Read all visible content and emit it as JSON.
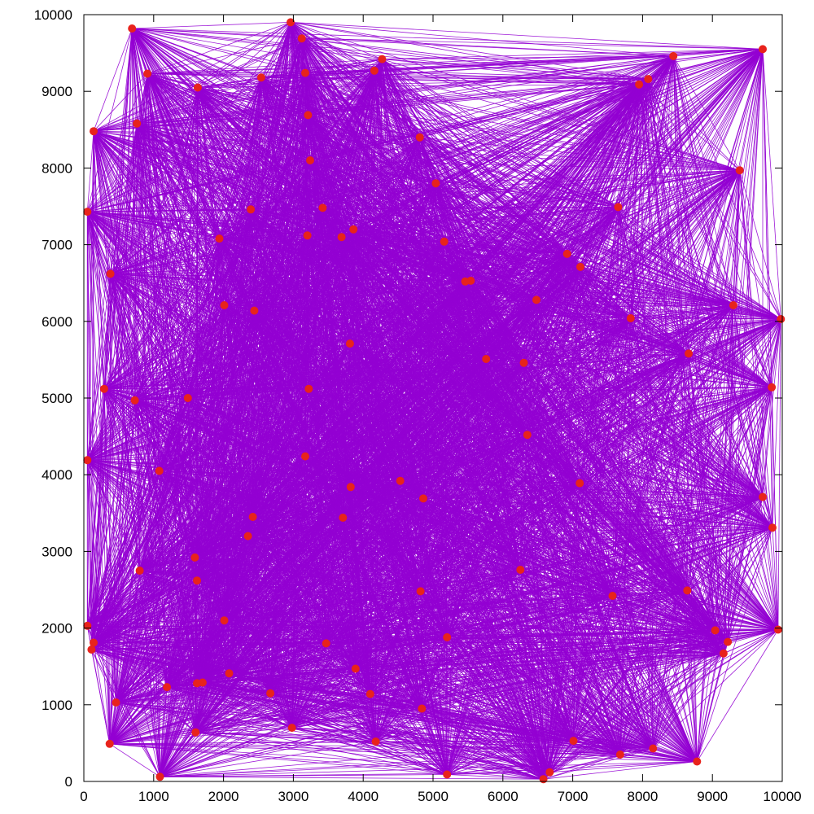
{
  "chart_data": {
    "type": "scatter",
    "title": "",
    "xlabel": "",
    "ylabel": "",
    "xlim": [
      0,
      10000
    ],
    "ylim": [
      0,
      10000
    ],
    "grid": false,
    "legend": "none",
    "x_ticks": [
      "0",
      "1000",
      "2000",
      "3000",
      "4000",
      "5000",
      "6000",
      "7000",
      "8000",
      "9000",
      "10000"
    ],
    "y_ticks": [
      "0",
      "1000",
      "2000",
      "3000",
      "4000",
      "5000",
      "6000",
      "7000",
      "8000",
      "9000",
      "10000"
    ],
    "point_color": "#e8231c",
    "edge_color": "#9400d3",
    "edges": "complete graph: every pair of points connected",
    "points": [
      {
        "x": 690,
        "y": 9820
      },
      {
        "x": 2960,
        "y": 9900
      },
      {
        "x": 3120,
        "y": 9690
      },
      {
        "x": 9720,
        "y": 9550
      },
      {
        "x": 8440,
        "y": 9460
      },
      {
        "x": 4270,
        "y": 9420
      },
      {
        "x": 4160,
        "y": 9270
      },
      {
        "x": 3170,
        "y": 9240
      },
      {
        "x": 910,
        "y": 9230
      },
      {
        "x": 2540,
        "y": 9180
      },
      {
        "x": 8080,
        "y": 9160
      },
      {
        "x": 7950,
        "y": 9090
      },
      {
        "x": 1630,
        "y": 9050
      },
      {
        "x": 3210,
        "y": 8690
      },
      {
        "x": 760,
        "y": 8580
      },
      {
        "x": 140,
        "y": 8480
      },
      {
        "x": 4810,
        "y": 8400
      },
      {
        "x": 3240,
        "y": 8100
      },
      {
        "x": 9390,
        "y": 7970
      },
      {
        "x": 5040,
        "y": 7800
      },
      {
        "x": 7650,
        "y": 7490
      },
      {
        "x": 3420,
        "y": 7480
      },
      {
        "x": 2390,
        "y": 7460
      },
      {
        "x": 50,
        "y": 7430
      },
      {
        "x": 3860,
        "y": 7200
      },
      {
        "x": 3200,
        "y": 7120
      },
      {
        "x": 3690,
        "y": 7100
      },
      {
        "x": 1940,
        "y": 7080
      },
      {
        "x": 5160,
        "y": 7040
      },
      {
        "x": 6920,
        "y": 6880
      },
      {
        "x": 7110,
        "y": 6710
      },
      {
        "x": 380,
        "y": 6620
      },
      {
        "x": 5540,
        "y": 6530
      },
      {
        "x": 5460,
        "y": 6520
      },
      {
        "x": 6480,
        "y": 6280
      },
      {
        "x": 9300,
        "y": 6210
      },
      {
        "x": 2010,
        "y": 6210
      },
      {
        "x": 2440,
        "y": 6140
      },
      {
        "x": 7830,
        "y": 6040
      },
      {
        "x": 9980,
        "y": 6030
      },
      {
        "x": 3810,
        "y": 5710
      },
      {
        "x": 8660,
        "y": 5580
      },
      {
        "x": 5760,
        "y": 5510
      },
      {
        "x": 6300,
        "y": 5460
      },
      {
        "x": 9850,
        "y": 5140
      },
      {
        "x": 290,
        "y": 5120
      },
      {
        "x": 3220,
        "y": 5120
      },
      {
        "x": 1490,
        "y": 5000
      },
      {
        "x": 730,
        "y": 4970
      },
      {
        "x": 6350,
        "y": 4520
      },
      {
        "x": 3170,
        "y": 4240
      },
      {
        "x": 50,
        "y": 4190
      },
      {
        "x": 1080,
        "y": 4050
      },
      {
        "x": 4530,
        "y": 3920
      },
      {
        "x": 7100,
        "y": 3890
      },
      {
        "x": 3820,
        "y": 3840
      },
      {
        "x": 9720,
        "y": 3710
      },
      {
        "x": 4860,
        "y": 3690
      },
      {
        "x": 2420,
        "y": 3450
      },
      {
        "x": 3710,
        "y": 3440
      },
      {
        "x": 9860,
        "y": 3310
      },
      {
        "x": 2350,
        "y": 3200
      },
      {
        "x": 1590,
        "y": 2920
      },
      {
        "x": 6250,
        "y": 2760
      },
      {
        "x": 800,
        "y": 2750
      },
      {
        "x": 1620,
        "y": 2620
      },
      {
        "x": 8640,
        "y": 2490
      },
      {
        "x": 4820,
        "y": 2480
      },
      {
        "x": 7570,
        "y": 2420
      },
      {
        "x": 2010,
        "y": 2100
      },
      {
        "x": 50,
        "y": 2030
      },
      {
        "x": 9940,
        "y": 1980
      },
      {
        "x": 9040,
        "y": 1970
      },
      {
        "x": 5200,
        "y": 1880
      },
      {
        "x": 9220,
        "y": 1820
      },
      {
        "x": 140,
        "y": 1810
      },
      {
        "x": 3470,
        "y": 1800
      },
      {
        "x": 110,
        "y": 1720
      },
      {
        "x": 9160,
        "y": 1670
      },
      {
        "x": 3890,
        "y": 1470
      },
      {
        "x": 2080,
        "y": 1410
      },
      {
        "x": 1700,
        "y": 1290
      },
      {
        "x": 1620,
        "y": 1280
      },
      {
        "x": 1190,
        "y": 1230
      },
      {
        "x": 2670,
        "y": 1150
      },
      {
        "x": 4100,
        "y": 1140
      },
      {
        "x": 460,
        "y": 1030
      },
      {
        "x": 4840,
        "y": 950
      },
      {
        "x": 2980,
        "y": 700
      },
      {
        "x": 1600,
        "y": 640
      },
      {
        "x": 7010,
        "y": 530
      },
      {
        "x": 4180,
        "y": 520
      },
      {
        "x": 370,
        "y": 490
      },
      {
        "x": 8150,
        "y": 430
      },
      {
        "x": 7680,
        "y": 350
      },
      {
        "x": 8780,
        "y": 260
      },
      {
        "x": 6670,
        "y": 120
      },
      {
        "x": 5200,
        "y": 90
      },
      {
        "x": 1090,
        "y": 60
      },
      {
        "x": 6580,
        "y": 30
      }
    ]
  }
}
